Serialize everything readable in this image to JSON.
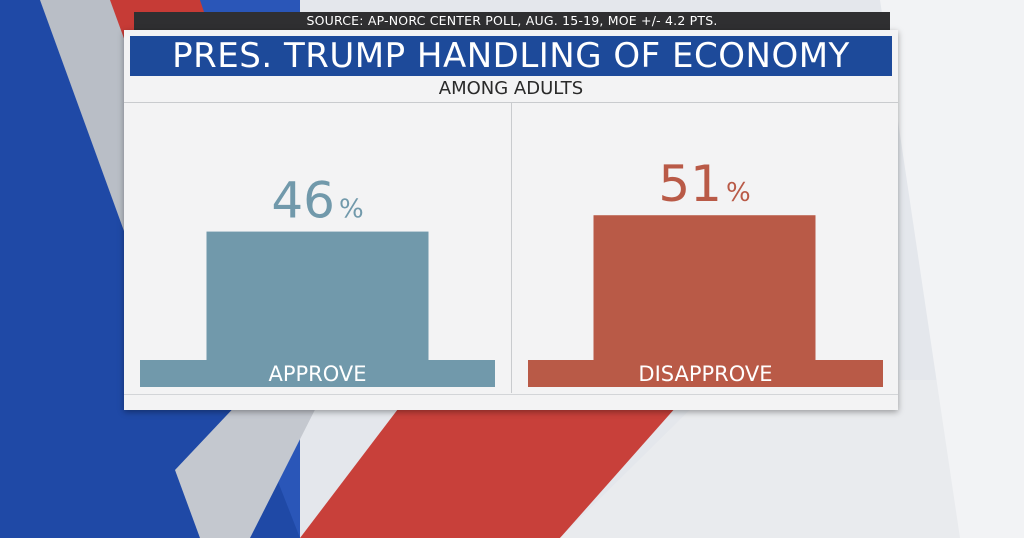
{
  "header": {
    "source": "SOURCE: AP-NORC CENTER POLL, AUG. 15-19, MOE +/- 4.2 PTS.",
    "title": "PRES. TRUMP HANDLING OF ECONOMY",
    "subtitle": "AMONG ADULTS"
  },
  "colors": {
    "approve": "#7199ab",
    "disapprove": "#b95a47",
    "title_bar": "#1d4a9a"
  },
  "chart_data": {
    "type": "bar",
    "categories": [
      "APPROVE",
      "DISAPPROVE"
    ],
    "values": [
      46,
      51
    ],
    "value_suffix": "%",
    "title": "PRES. TRUMP HANDLING OF ECONOMY",
    "subtitle": "AMONG ADULTS",
    "xlabel": "",
    "ylabel": "",
    "grid": false
  }
}
